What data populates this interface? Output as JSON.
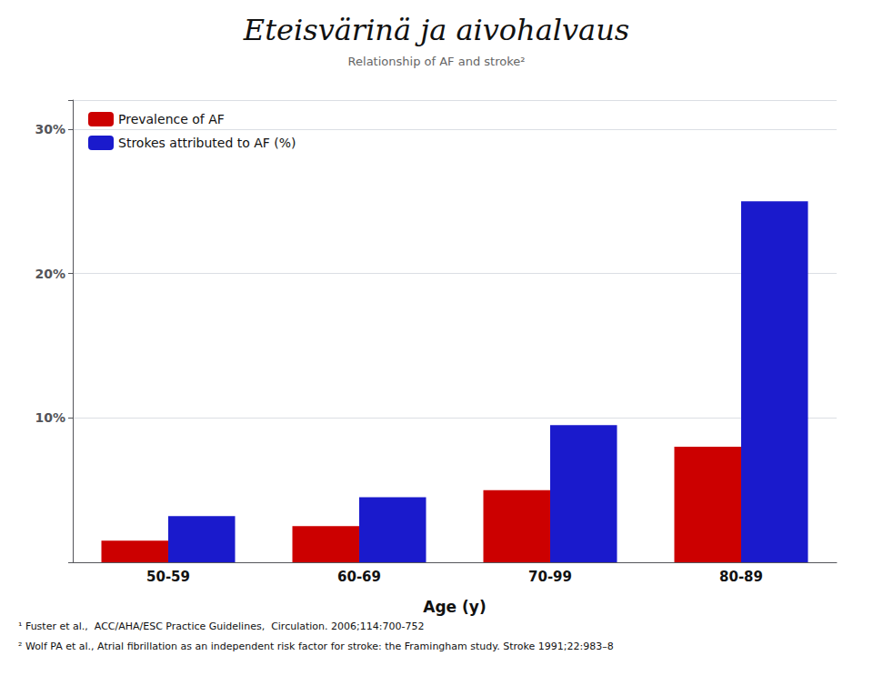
{
  "chart_data": {
    "type": "bar",
    "title": "Eteisvärinä ja aivohalvaus",
    "subtitle": "Relationship of AF and stroke²",
    "categories": [
      "50-59",
      "60-69",
      "70-99",
      "80-89"
    ],
    "series": [
      {
        "name": "Prevalence of AF",
        "color": "#cc0000",
        "values": [
          1.5,
          2.5,
          5.0,
          8.0
        ]
      },
      {
        "name": "Strokes attributed to AF (%)",
        "color": "#1a1acc",
        "values": [
          3.2,
          4.5,
          9.5,
          25.0
        ]
      }
    ],
    "xlabel": "Age (y)",
    "ylim": [
      0,
      32
    ],
    "yticks": [
      {
        "value": 10,
        "label": "10%"
      },
      {
        "value": 20,
        "label": "20%"
      },
      {
        "value": 30,
        "label": "30%"
      }
    ],
    "grid": true,
    "legend": "upper left",
    "annotations": [
      "¹ Fuster et al.,  ACC/AHA/ESC Practice Guidelines,  Circulation. 2006;114:700-752",
      "² Wolf PA et al., Atrial fibrillation as an independent risk factor for stroke: the Framingham study. Stroke 1991;22:983–8"
    ]
  }
}
